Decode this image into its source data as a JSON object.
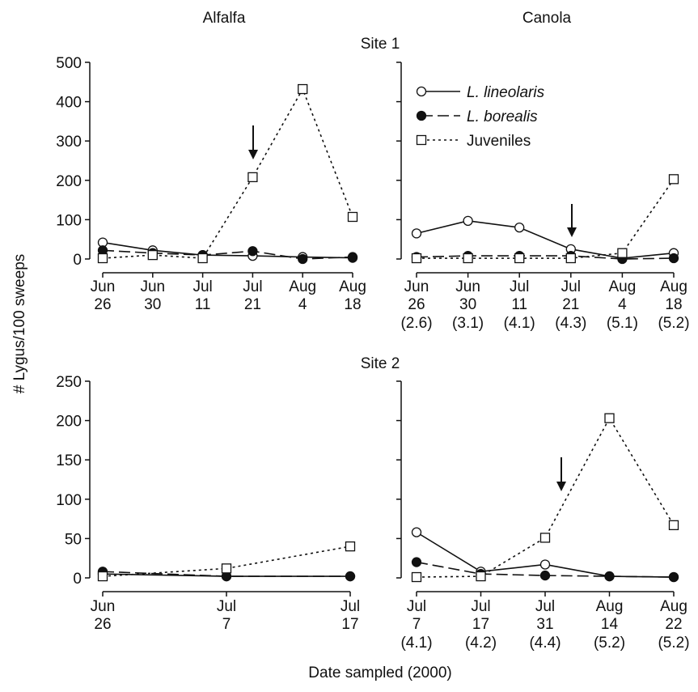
{
  "column_titles": [
    "Alfalfa",
    "Canola"
  ],
  "row_titles": [
    "Site 1",
    "Site 2"
  ],
  "ylabel": "# Lygus/100 sweeps",
  "xlabel": "Date sampled (2000)",
  "chart_data": [
    {
      "type": "line",
      "categories": [
        "Jun 26",
        "Jun 30",
        "Jul 11",
        "Jul 21",
        "Aug 4",
        "Aug 18"
      ],
      "ylim": [
        0,
        500
      ],
      "yticks": [
        0,
        100,
        200,
        300,
        400,
        500
      ],
      "series": [
        {
          "dash": "solid",
          "marker": "open-circle",
          "values": [
            42,
            22,
            10,
            8,
            5,
            3
          ]
        },
        {
          "dash": "dashed",
          "marker": "filled-circle",
          "values": [
            22,
            15,
            10,
            20,
            0,
            5
          ]
        },
        {
          "dash": "dotted",
          "marker": "open-square",
          "values": [
            2,
            10,
            2,
            208,
            432,
            107
          ]
        }
      ]
    },
    {
      "type": "line",
      "categories": [
        "Jun 26",
        "Jun 30",
        "Jul 11",
        "Jul 21",
        "Aug 4",
        "Aug 18"
      ],
      "category_notes": [
        "(2.6)",
        "(3.1)",
        "(4.1)",
        "(4.3)",
        "(5.1)",
        "(5.2)"
      ],
      "ylim": [
        0,
        500
      ],
      "yticks": [
        0,
        100,
        200,
        300,
        400,
        500
      ],
      "legend": "upper left",
      "series": [
        {
          "name": "L. lineolaris",
          "italic": true,
          "dash": "solid",
          "marker": "open-circle",
          "values": [
            65,
            97,
            80,
            25,
            2,
            15
          ]
        },
        {
          "name": "L. borealis",
          "italic": true,
          "dash": "dashed",
          "marker": "filled-circle",
          "values": [
            5,
            8,
            8,
            8,
            0,
            2
          ]
        },
        {
          "name": "Juveniles",
          "italic": false,
          "dash": "dotted",
          "marker": "open-square",
          "values": [
            2,
            2,
            2,
            2,
            15,
            203
          ]
        }
      ]
    },
    {
      "type": "line",
      "categories": [
        "Jun 26",
        "Jul 7",
        "Jul 17"
      ],
      "ylim": [
        0,
        250
      ],
      "yticks": [
        0,
        50,
        100,
        150,
        200,
        250
      ],
      "series": [
        {
          "dash": "solid",
          "marker": "open-circle",
          "values": [
            5,
            2,
            2
          ]
        },
        {
          "dash": "dashed",
          "marker": "filled-circle",
          "values": [
            8,
            2,
            2
          ]
        },
        {
          "dash": "dotted",
          "marker": "open-square",
          "values": [
            2,
            12,
            40
          ]
        }
      ]
    },
    {
      "type": "line",
      "categories": [
        "Jul 7",
        "Jul 17",
        "Jul 31",
        "Aug 14",
        "Aug 22"
      ],
      "category_notes": [
        "(4.1)",
        "(4.2)",
        "(4.4)",
        "(5.2)",
        "(5.2)"
      ],
      "ylim": [
        0,
        250
      ],
      "yticks": [
        0,
        50,
        100,
        150,
        200,
        250
      ],
      "series": [
        {
          "dash": "solid",
          "marker": "open-circle",
          "values": [
            58,
            8,
            17,
            2,
            1
          ]
        },
        {
          "dash": "dashed",
          "marker": "filled-circle",
          "values": [
            20,
            5,
            3,
            2,
            1
          ]
        },
        {
          "dash": "dotted",
          "marker": "open-square",
          "values": [
            1,
            2,
            51,
            203,
            67
          ]
        }
      ]
    }
  ]
}
